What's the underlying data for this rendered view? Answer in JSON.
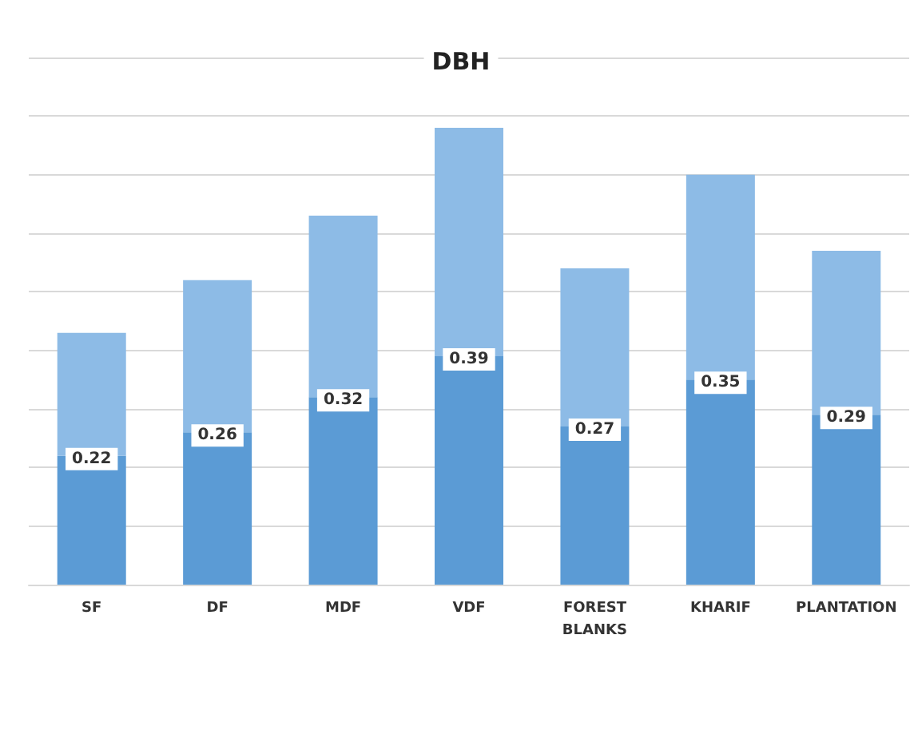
{
  "chart_data": {
    "type": "bar",
    "title": "DBH",
    "categories": [
      "SF",
      "DF",
      "MDF",
      "VDF",
      "FOREST\nBLANKS",
      "KHARIF",
      "PLANTATION"
    ],
    "stacked": true,
    "series": [
      {
        "color": "#5b9bd5",
        "values": [
          0.22,
          0.26,
          0.32,
          0.39,
          0.27,
          0.35,
          0.29
        ],
        "value_labels": [
          "0.22",
          "0.26",
          "0.32",
          "0.39",
          "0.27",
          "0.35",
          "0.29"
        ]
      },
      {
        "color": "#8dbbe6",
        "values": [
          0.21,
          0.26,
          0.31,
          0.39,
          0.27,
          0.35,
          0.28
        ]
      }
    ],
    "ylim": [
      0,
      0.9
    ],
    "yticks": [
      {
        "value": 0,
        "label": null
      },
      {
        "value": 0.1,
        "label": null
      },
      {
        "value": 0.2,
        "label": null
      },
      {
        "value": 0.3,
        "label": null
      },
      {
        "value": 0.4,
        "label": null
      },
      {
        "value": 0.5,
        "label": null
      },
      {
        "value": 0.6,
        "label": null
      },
      {
        "value": 0.7,
        "label": null
      },
      {
        "value": 0.8,
        "label": null
      },
      {
        "value": 0.9,
        "label": null
      }
    ],
    "grid": "y",
    "tick_labels": "x"
  }
}
